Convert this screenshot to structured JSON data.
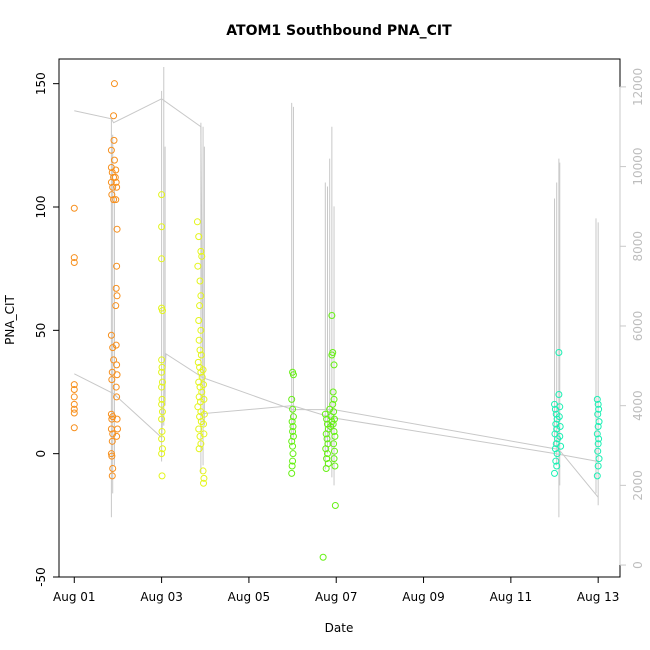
{
  "chart_data": {
    "type": "scatter",
    "title": "ATOM1 Southbound PNA_CIT",
    "xlabel": "Date",
    "ylabel": "PNA_CIT",
    "x_ticks": [
      "Aug 01",
      "Aug 03",
      "Aug 05",
      "Aug 07",
      "Aug 09",
      "Aug 11",
      "Aug 13"
    ],
    "x_tick_days": [
      1,
      3,
      5,
      7,
      9,
      11,
      13
    ],
    "xlim": [
      0.65,
      13.5
    ],
    "ylim": [
      -50,
      160
    ],
    "y_ticks": [
      -50,
      0,
      50,
      100,
      150
    ],
    "y2_ticks": [
      0,
      2000,
      4000,
      6000,
      8000,
      10000,
      12000
    ],
    "y2lim": [
      -300,
      12700
    ],
    "grid": false,
    "colors": {
      "group1": "#f7901e",
      "group2": "#e4f51c",
      "group3": "#66f014",
      "group4": "#1cf0b4",
      "secondary_line": "#c8c8c8"
    },
    "series": [
      {
        "group": "group1",
        "points": [
          {
            "x": 1.0,
            "y": 99.5
          },
          {
            "x": 1.0,
            "y": 79.5
          },
          {
            "x": 1.0,
            "y": 77.5
          },
          {
            "x": 1.0,
            "y": 28
          },
          {
            "x": 1.0,
            "y": 26
          },
          {
            "x": 1.0,
            "y": 23
          },
          {
            "x": 1.0,
            "y": 20
          },
          {
            "x": 1.0,
            "y": 18
          },
          {
            "x": 1.0,
            "y": 16.5
          },
          {
            "x": 1.0,
            "y": 10.5
          },
          {
            "x": 1.85,
            "y": 123
          },
          {
            "x": 1.85,
            "y": 116
          },
          {
            "x": 1.87,
            "y": 114
          },
          {
            "x": 1.9,
            "y": 112
          },
          {
            "x": 1.85,
            "y": 110
          },
          {
            "x": 1.88,
            "y": 108
          },
          {
            "x": 1.86,
            "y": 105
          },
          {
            "x": 1.9,
            "y": 103
          },
          {
            "x": 1.85,
            "y": 48
          },
          {
            "x": 1.88,
            "y": 43
          },
          {
            "x": 1.9,
            "y": 38
          },
          {
            "x": 1.87,
            "y": 33
          },
          {
            "x": 1.86,
            "y": 30
          },
          {
            "x": 1.85,
            "y": 16
          },
          {
            "x": 1.88,
            "y": 15
          },
          {
            "x": 1.86,
            "y": 14
          },
          {
            "x": 1.85,
            "y": 10
          },
          {
            "x": 1.88,
            "y": 8
          },
          {
            "x": 1.87,
            "y": 5
          },
          {
            "x": 1.85,
            "y": 0
          },
          {
            "x": 1.86,
            "y": -1
          },
          {
            "x": 1.88,
            "y": -6
          },
          {
            "x": 1.87,
            "y": -9
          },
          {
            "x": 1.92,
            "y": 150
          },
          {
            "x": 1.9,
            "y": 137
          },
          {
            "x": 1.91,
            "y": 127
          },
          {
            "x": 1.92,
            "y": 119
          },
          {
            "x": 1.95,
            "y": 115
          },
          {
            "x": 1.94,
            "y": 112
          },
          {
            "x": 1.96,
            "y": 110
          },
          {
            "x": 1.97,
            "y": 108
          },
          {
            "x": 1.95,
            "y": 103
          },
          {
            "x": 1.98,
            "y": 91
          },
          {
            "x": 1.97,
            "y": 76
          },
          {
            "x": 1.96,
            "y": 67
          },
          {
            "x": 1.98,
            "y": 64
          },
          {
            "x": 1.95,
            "y": 60
          },
          {
            "x": 1.96,
            "y": 44
          },
          {
            "x": 1.97,
            "y": 36
          },
          {
            "x": 1.98,
            "y": 32
          },
          {
            "x": 1.96,
            "y": 27
          },
          {
            "x": 1.97,
            "y": 23
          },
          {
            "x": 1.98,
            "y": 14
          },
          {
            "x": 1.99,
            "y": 10
          },
          {
            "x": 1.97,
            "y": 7
          }
        ]
      },
      {
        "group": "group2",
        "points": [
          {
            "x": 3.0,
            "y": 105
          },
          {
            "x": 3.0,
            "y": 92
          },
          {
            "x": 3.0,
            "y": 79
          },
          {
            "x": 3.0,
            "y": 59
          },
          {
            "x": 3.02,
            "y": 58
          },
          {
            "x": 3.0,
            "y": 38
          },
          {
            "x": 3.01,
            "y": 35
          },
          {
            "x": 3.0,
            "y": 33
          },
          {
            "x": 3.02,
            "y": 29
          },
          {
            "x": 3.0,
            "y": 27
          },
          {
            "x": 3.01,
            "y": 22
          },
          {
            "x": 3.0,
            "y": 20
          },
          {
            "x": 3.02,
            "y": 17
          },
          {
            "x": 3.0,
            "y": 14
          },
          {
            "x": 3.01,
            "y": 9
          },
          {
            "x": 3.0,
            "y": 6
          },
          {
            "x": 3.02,
            "y": 2
          },
          {
            "x": 3.0,
            "y": 0
          },
          {
            "x": 3.01,
            "y": -9
          },
          {
            "x": 3.82,
            "y": 94
          },
          {
            "x": 3.85,
            "y": 88
          },
          {
            "x": 3.83,
            "y": 76
          },
          {
            "x": 3.9,
            "y": 82
          },
          {
            "x": 3.92,
            "y": 80
          },
          {
            "x": 3.88,
            "y": 70
          },
          {
            "x": 3.9,
            "y": 64
          },
          {
            "x": 3.87,
            "y": 60
          },
          {
            "x": 3.85,
            "y": 54
          },
          {
            "x": 3.9,
            "y": 50
          },
          {
            "x": 3.86,
            "y": 46
          },
          {
            "x": 3.88,
            "y": 42
          },
          {
            "x": 3.91,
            "y": 40
          },
          {
            "x": 3.84,
            "y": 37
          },
          {
            "x": 3.87,
            "y": 35
          },
          {
            "x": 3.9,
            "y": 33
          },
          {
            "x": 3.93,
            "y": 31
          },
          {
            "x": 3.85,
            "y": 29
          },
          {
            "x": 3.88,
            "y": 27
          },
          {
            "x": 3.92,
            "y": 25
          },
          {
            "x": 3.86,
            "y": 23
          },
          {
            "x": 3.89,
            "y": 21
          },
          {
            "x": 3.83,
            "y": 19
          },
          {
            "x": 3.9,
            "y": 17
          },
          {
            "x": 3.87,
            "y": 15
          },
          {
            "x": 3.91,
            "y": 13
          },
          {
            "x": 3.85,
            "y": 10
          },
          {
            "x": 3.88,
            "y": 7
          },
          {
            "x": 3.9,
            "y": 4
          },
          {
            "x": 3.86,
            "y": 2
          },
          {
            "x": 3.95,
            "y": 34
          },
          {
            "x": 3.96,
            "y": 28
          },
          {
            "x": 3.97,
            "y": 22
          },
          {
            "x": 3.98,
            "y": 16
          },
          {
            "x": 3.96,
            "y": 12
          },
          {
            "x": 3.97,
            "y": 8
          },
          {
            "x": 3.95,
            "y": -7
          },
          {
            "x": 3.97,
            "y": -10
          },
          {
            "x": 3.96,
            "y": -12
          }
        ]
      },
      {
        "group": "group3",
        "points": [
          {
            "x": 6.0,
            "y": 33
          },
          {
            "x": 6.02,
            "y": 32
          },
          {
            "x": 5.98,
            "y": 22
          },
          {
            "x": 6.0,
            "y": 18
          },
          {
            "x": 6.02,
            "y": 15
          },
          {
            "x": 5.99,
            "y": 13
          },
          {
            "x": 6.01,
            "y": 11
          },
          {
            "x": 6.0,
            "y": 9
          },
          {
            "x": 6.02,
            "y": 7
          },
          {
            "x": 5.98,
            "y": 5
          },
          {
            "x": 6.0,
            "y": 3
          },
          {
            "x": 6.01,
            "y": 0
          },
          {
            "x": 6.0,
            "y": -3
          },
          {
            "x": 5.99,
            "y": -5
          },
          {
            "x": 5.98,
            "y": -8
          },
          {
            "x": 6.75,
            "y": 16
          },
          {
            "x": 6.78,
            "y": 14
          },
          {
            "x": 6.8,
            "y": 12
          },
          {
            "x": 6.82,
            "y": 10
          },
          {
            "x": 6.77,
            "y": 8
          },
          {
            "x": 6.79,
            "y": 6
          },
          {
            "x": 6.81,
            "y": 4
          },
          {
            "x": 6.76,
            "y": 2
          },
          {
            "x": 6.8,
            "y": 0
          },
          {
            "x": 6.78,
            "y": -2
          },
          {
            "x": 6.82,
            "y": -4
          },
          {
            "x": 6.77,
            "y": -6
          },
          {
            "x": 6.85,
            "y": 18
          },
          {
            "x": 6.88,
            "y": 15
          },
          {
            "x": 6.9,
            "y": 13
          },
          {
            "x": 6.87,
            "y": 11
          },
          {
            "x": 6.9,
            "y": 56
          },
          {
            "x": 6.92,
            "y": 41
          },
          {
            "x": 6.9,
            "y": 40
          },
          {
            "x": 6.95,
            "y": 36
          },
          {
            "x": 6.93,
            "y": 25
          },
          {
            "x": 6.95,
            "y": 22
          },
          {
            "x": 6.92,
            "y": 20
          },
          {
            "x": 6.94,
            "y": 17
          },
          {
            "x": 6.96,
            "y": 14
          },
          {
            "x": 6.93,
            "y": 12
          },
          {
            "x": 6.95,
            "y": 9
          },
          {
            "x": 6.97,
            "y": 7
          },
          {
            "x": 6.94,
            "y": 4
          },
          {
            "x": 6.96,
            "y": 1
          },
          {
            "x": 6.95,
            "y": -2
          },
          {
            "x": 6.97,
            "y": -5
          },
          {
            "x": 6.98,
            "y": -21
          },
          {
            "x": 6.7,
            "y": -42
          }
        ]
      },
      {
        "group": "group4",
        "points": [
          {
            "x": 12.0,
            "y": 20
          },
          {
            "x": 12.02,
            "y": 18
          },
          {
            "x": 12.04,
            "y": 16
          },
          {
            "x": 12.06,
            "y": 14
          },
          {
            "x": 12.03,
            "y": 12
          },
          {
            "x": 12.05,
            "y": 10
          },
          {
            "x": 12.01,
            "y": 8
          },
          {
            "x": 12.07,
            "y": 6
          },
          {
            "x": 12.04,
            "y": 4
          },
          {
            "x": 12.02,
            "y": 2
          },
          {
            "x": 12.06,
            "y": 0
          },
          {
            "x": 12.03,
            "y": -3
          },
          {
            "x": 12.05,
            "y": -5
          },
          {
            "x": 12.0,
            "y": -8
          },
          {
            "x": 12.1,
            "y": 41
          },
          {
            "x": 12.1,
            "y": 24
          },
          {
            "x": 12.12,
            "y": 19
          },
          {
            "x": 12.11,
            "y": 15
          },
          {
            "x": 12.13,
            "y": 11
          },
          {
            "x": 12.12,
            "y": 7
          },
          {
            "x": 12.14,
            "y": 3
          },
          {
            "x": 12.98,
            "y": 22
          },
          {
            "x": 13.0,
            "y": 20
          },
          {
            "x": 13.01,
            "y": 18
          },
          {
            "x": 12.99,
            "y": 16
          },
          {
            "x": 13.02,
            "y": 13
          },
          {
            "x": 13.0,
            "y": 11
          },
          {
            "x": 12.98,
            "y": 8
          },
          {
            "x": 13.01,
            "y": 6
          },
          {
            "x": 13.0,
            "y": 4
          },
          {
            "x": 12.99,
            "y": 1
          },
          {
            "x": 13.02,
            "y": -2
          },
          {
            "x": 13.0,
            "y": -5
          },
          {
            "x": 12.98,
            "y": -9
          }
        ]
      }
    ],
    "secondary_series": {
      "note_axis": "right",
      "trend": [
        {
          "x": 1.0,
          "y2": 11400
        },
        {
          "x": 1.85,
          "y2": 11200
        },
        {
          "x": 1.9,
          "y2": 11100
        },
        {
          "x": 3.0,
          "y2": 11700
        },
        {
          "x": 3.9,
          "y2": 11000
        },
        {
          "x": 3.95,
          "y2": 3800
        },
        {
          "x": 6.0,
          "y2": 4000
        },
        {
          "x": 6.9,
          "y2": 3700
        },
        {
          "x": 12.0,
          "y2": 2800
        },
        {
          "x": 13.0,
          "y2": 2600
        }
      ],
      "trend2": [
        {
          "x": 1.0,
          "y2": 4800
        },
        {
          "x": 1.9,
          "y2": 4300
        },
        {
          "x": 3.0,
          "y2": 3200
        },
        {
          "x": 3.1,
          "y2": 5300
        },
        {
          "x": 3.95,
          "y2": 4700
        },
        {
          "x": 6.0,
          "y2": 3900
        },
        {
          "x": 6.95,
          "y2": 3900
        },
        {
          "x": 12.1,
          "y2": 2900
        },
        {
          "x": 13.0,
          "y2": 1700
        }
      ],
      "spikes": [
        {
          "x": 1.85,
          "lo": 1200,
          "hi": 11200
        },
        {
          "x": 1.88,
          "lo": 1800,
          "hi": 10800
        },
        {
          "x": 1.92,
          "lo": 2500,
          "hi": 9500
        },
        {
          "x": 3.0,
          "lo": 2600,
          "hi": 11900
        },
        {
          "x": 3.05,
          "lo": 3500,
          "hi": 12500
        },
        {
          "x": 3.08,
          "lo": 4000,
          "hi": 10500
        },
        {
          "x": 3.9,
          "lo": 2300,
          "hi": 11100
        },
        {
          "x": 3.95,
          "lo": 2500,
          "hi": 11000
        },
        {
          "x": 3.98,
          "lo": 3500,
          "hi": 10500
        },
        {
          "x": 5.98,
          "lo": 3000,
          "hi": 11600
        },
        {
          "x": 6.02,
          "lo": 3200,
          "hi": 11500
        },
        {
          "x": 6.75,
          "lo": 2400,
          "hi": 9600
        },
        {
          "x": 6.8,
          "lo": 2800,
          "hi": 9500
        },
        {
          "x": 6.85,
          "lo": 3000,
          "hi": 10200
        },
        {
          "x": 6.9,
          "lo": 2200,
          "hi": 11000
        },
        {
          "x": 6.95,
          "lo": 2000,
          "hi": 9000
        },
        {
          "x": 12.0,
          "lo": 3000,
          "hi": 9200
        },
        {
          "x": 12.05,
          "lo": 2500,
          "hi": 9600
        },
        {
          "x": 12.1,
          "lo": 1200,
          "hi": 10200
        },
        {
          "x": 12.12,
          "lo": 2000,
          "hi": 10100
        },
        {
          "x": 12.95,
          "lo": 1800,
          "hi": 8700
        },
        {
          "x": 13.0,
          "lo": 1500,
          "hi": 8600
        }
      ]
    }
  }
}
